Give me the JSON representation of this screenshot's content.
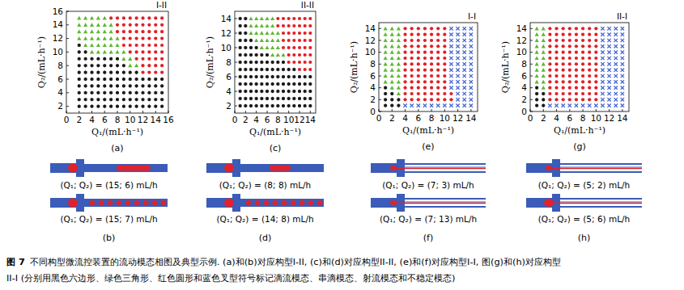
{
  "chart_data": [
    {
      "type": "scatter",
      "title": "I-II",
      "panel": "(a)",
      "x_label": "Q₁/(mL·h⁻¹)",
      "y_label": "Q₂/(mL·h⁻¹)",
      "xlim": [
        0,
        16
      ],
      "ylim": [
        1,
        16
      ],
      "xticks": [
        0,
        2,
        4,
        6,
        8,
        10,
        12,
        14,
        16
      ],
      "yticks": [
        2,
        4,
        6,
        8,
        10,
        12,
        14,
        16
      ],
      "series": [
        {
          "color": "#1a1a1a",
          "marker": "hexagon"
        },
        {
          "color": "#5cb82e",
          "marker": "triangle"
        },
        {
          "color": "#e21f26",
          "marker": "circle"
        },
        {
          "color": "#3d5fcf",
          "marker": "cross"
        }
      ],
      "x": [
        2,
        3,
        4,
        5,
        6,
        7,
        8,
        9,
        10,
        11,
        12,
        13,
        14,
        15
      ],
      "y": [
        2,
        3,
        4,
        5,
        6,
        7,
        8,
        9,
        10,
        11,
        12,
        13,
        14,
        15
      ],
      "cells": [
        [
          0,
          0,
          0,
          0,
          0,
          0,
          0,
          0,
          0,
          0,
          0,
          0,
          0,
          0
        ],
        [
          0,
          0,
          0,
          0,
          0,
          0,
          0,
          0,
          0,
          0,
          0,
          0,
          0,
          0
        ],
        [
          0,
          0,
          0,
          0,
          0,
          0,
          0,
          0,
          0,
          0,
          0,
          0,
          0,
          0
        ],
        [
          0,
          0,
          0,
          0,
          0,
          0,
          0,
          0,
          0,
          0,
          0,
          0,
          0,
          0
        ],
        [
          0,
          0,
          0,
          0,
          0,
          0,
          0,
          0,
          0,
          0,
          0,
          0,
          0,
          0
        ],
        [
          0,
          0,
          0,
          0,
          0,
          0,
          0,
          0,
          0,
          0,
          2,
          2,
          2,
          2
        ],
        [
          0,
          0,
          0,
          0,
          0,
          0,
          0,
          0,
          1,
          1,
          2,
          2,
          2,
          2
        ],
        [
          0,
          0,
          0,
          0,
          0,
          0,
          0,
          1,
          1,
          2,
          2,
          2,
          2,
          2
        ],
        [
          0,
          0,
          1,
          1,
          1,
          1,
          1,
          1,
          2,
          2,
          2,
          2,
          2,
          2
        ],
        [
          0,
          1,
          1,
          1,
          1,
          1,
          1,
          2,
          2,
          2,
          2,
          2,
          2,
          2
        ],
        [
          1,
          1,
          1,
          1,
          1,
          1,
          1,
          2,
          2,
          2,
          2,
          2,
          2,
          2
        ],
        [
          1,
          1,
          1,
          1,
          1,
          1,
          2,
          2,
          2,
          2,
          2,
          2,
          2,
          2
        ],
        [
          1,
          1,
          1,
          1,
          1,
          1,
          2,
          2,
          2,
          2,
          2,
          2,
          2,
          2
        ],
        [
          1,
          1,
          1,
          1,
          1,
          2,
          2,
          2,
          2,
          2,
          2,
          2,
          2,
          2
        ]
      ]
    },
    {
      "type": "scatter",
      "title": "II-II",
      "panel": "(c)",
      "x_label": "Q₁/(mL·h⁻¹)",
      "y_label": "Q₂/(mL·h⁻¹)",
      "xlim": [
        0,
        15
      ],
      "ylim": [
        1,
        15
      ],
      "xticks": [
        0,
        2,
        4,
        6,
        8,
        10,
        12,
        14
      ],
      "yticks": [
        2,
        4,
        6,
        8,
        10,
        12,
        14
      ],
      "series": [
        {
          "color": "#1a1a1a",
          "marker": "hexagon"
        },
        {
          "color": "#5cb82e",
          "marker": "triangle"
        },
        {
          "color": "#e21f26",
          "marker": "circle"
        },
        {
          "color": "#3d5fcf",
          "marker": "cross"
        }
      ],
      "x": [
        1,
        2,
        3,
        4,
        5,
        6,
        7,
        8,
        9,
        10,
        11,
        12,
        13,
        14
      ],
      "y": [
        2,
        3,
        4,
        5,
        6,
        7,
        8,
        9,
        10,
        11,
        12,
        13,
        14
      ],
      "cells": [
        [
          0,
          0,
          0,
          0,
          0,
          0,
          0,
          0,
          0,
          0,
          0,
          0,
          0,
          0
        ],
        [
          0,
          0,
          0,
          0,
          0,
          0,
          0,
          0,
          0,
          0,
          0,
          0,
          0,
          0
        ],
        [
          0,
          0,
          0,
          0,
          0,
          0,
          0,
          0,
          0,
          0,
          0,
          0,
          0,
          0
        ],
        [
          0,
          0,
          0,
          0,
          0,
          0,
          0,
          0,
          0,
          0,
          0,
          0,
          0,
          0
        ],
        [
          0,
          0,
          0,
          0,
          0,
          0,
          0,
          0,
          0,
          0,
          0,
          0,
          0,
          0
        ],
        [
          0,
          0,
          0,
          0,
          0,
          0,
          0,
          0,
          0,
          0,
          0,
          2,
          2,
          2
        ],
        [
          0,
          0,
          0,
          0,
          0,
          0,
          0,
          0,
          0,
          2,
          2,
          2,
          2,
          2
        ],
        [
          0,
          0,
          0,
          0,
          0,
          0,
          1,
          1,
          1,
          2,
          2,
          2,
          2,
          2
        ],
        [
          0,
          0,
          0,
          0,
          1,
          1,
          1,
          1,
          2,
          2,
          2,
          2,
          2,
          2
        ],
        [
          0,
          0,
          0,
          1,
          1,
          1,
          1,
          1,
          2,
          2,
          2,
          2,
          2,
          2
        ],
        [
          0,
          0,
          1,
          1,
          1,
          1,
          1,
          1,
          2,
          2,
          2,
          2,
          2,
          2
        ],
        [
          0,
          0,
          1,
          1,
          1,
          1,
          1,
          2,
          2,
          2,
          2,
          2,
          2,
          2
        ],
        [
          0,
          0,
          1,
          1,
          1,
          1,
          1,
          2,
          2,
          2,
          2,
          2,
          2,
          2
        ]
      ]
    },
    {
      "type": "scatter",
      "title": "I-I",
      "panel": "(e)",
      "x_label": "Q₁/(mL·h⁻¹)",
      "y_label": "Q₂/(mL·h⁻¹)",
      "xlim": [
        0,
        15
      ],
      "ylim": [
        0,
        15
      ],
      "xticks": [
        0,
        2,
        4,
        6,
        8,
        10,
        12,
        14
      ],
      "yticks": [
        0,
        2,
        4,
        6,
        8,
        10,
        12,
        14
      ],
      "series": [
        {
          "color": "#1a1a1a",
          "marker": "hexagon"
        },
        {
          "color": "#5cb82e",
          "marker": "triangle"
        },
        {
          "color": "#e21f26",
          "marker": "circle"
        },
        {
          "color": "#3d5fcf",
          "marker": "cross"
        }
      ],
      "x": [
        1,
        2,
        3,
        4,
        5,
        6,
        7,
        8,
        9,
        10,
        11,
        12,
        13,
        14
      ],
      "y": [
        1,
        2,
        3,
        4,
        5,
        6,
        7,
        8,
        9,
        10,
        11,
        12,
        13,
        14
      ],
      "cells": [
        [
          0,
          0,
          0,
          3,
          3,
          3,
          3,
          3,
          3,
          3,
          3,
          3,
          3,
          3
        ],
        [
          0,
          0,
          0,
          2,
          2,
          2,
          2,
          2,
          2,
          2,
          2,
          3,
          3,
          3
        ],
        [
          0,
          0,
          1,
          2,
          2,
          2,
          2,
          2,
          2,
          2,
          2,
          3,
          3,
          3
        ],
        [
          0,
          1,
          1,
          2,
          2,
          2,
          2,
          2,
          2,
          2,
          3,
          3,
          3,
          3
        ],
        [
          1,
          1,
          1,
          2,
          2,
          2,
          2,
          2,
          2,
          2,
          3,
          3,
          3,
          3
        ],
        [
          1,
          1,
          1,
          2,
          2,
          2,
          2,
          2,
          2,
          2,
          3,
          3,
          3,
          3
        ],
        [
          1,
          1,
          1,
          2,
          2,
          2,
          2,
          2,
          2,
          2,
          3,
          3,
          3,
          3
        ],
        [
          1,
          1,
          1,
          2,
          2,
          2,
          2,
          2,
          2,
          2,
          3,
          3,
          3,
          3
        ],
        [
          1,
          1,
          1,
          2,
          2,
          2,
          2,
          2,
          2,
          2,
          3,
          3,
          3,
          3
        ],
        [
          1,
          1,
          1,
          2,
          2,
          2,
          2,
          2,
          2,
          2,
          3,
          3,
          3,
          3
        ],
        [
          1,
          1,
          1,
          2,
          2,
          2,
          2,
          2,
          2,
          2,
          3,
          3,
          3,
          3
        ],
        [
          1,
          1,
          1,
          2,
          2,
          2,
          2,
          2,
          2,
          2,
          3,
          3,
          3,
          3
        ],
        [
          1,
          1,
          1,
          2,
          2,
          2,
          2,
          2,
          2,
          2,
          3,
          3,
          3,
          3
        ],
        [
          1,
          1,
          1,
          2,
          2,
          2,
          2,
          2,
          2,
          2,
          3,
          3,
          3,
          3
        ]
      ]
    },
    {
      "type": "scatter",
      "title": "II-I",
      "panel": "(g)",
      "x_label": "Q₁/(mL·h⁻¹)",
      "y_label": "Q₂/(mL·h⁻¹)",
      "xlim": [
        0,
        15
      ],
      "ylim": [
        0,
        15
      ],
      "xticks": [
        0,
        2,
        4,
        6,
        8,
        10,
        12,
        14
      ],
      "yticks": [
        0,
        2,
        4,
        6,
        8,
        10,
        12,
        14
      ],
      "series": [
        {
          "color": "#1a1a1a",
          "marker": "hexagon"
        },
        {
          "color": "#5cb82e",
          "marker": "triangle"
        },
        {
          "color": "#e21f26",
          "marker": "circle"
        },
        {
          "color": "#3d5fcf",
          "marker": "cross"
        }
      ],
      "x": [
        1,
        2,
        3,
        4,
        5,
        6,
        7,
        8,
        9,
        10,
        11,
        12,
        13,
        14
      ],
      "y": [
        1,
        2,
        3,
        4,
        5,
        6,
        7,
        8,
        9,
        10,
        11,
        12,
        13,
        14
      ],
      "cells": [
        [
          0,
          0,
          3,
          3,
          3,
          3,
          3,
          3,
          3,
          3,
          3,
          3,
          3,
          3
        ],
        [
          0,
          0,
          2,
          2,
          2,
          2,
          2,
          2,
          2,
          2,
          3,
          3,
          3,
          3
        ],
        [
          0,
          0,
          2,
          2,
          2,
          2,
          2,
          2,
          2,
          2,
          3,
          3,
          3,
          3
        ],
        [
          0,
          1,
          2,
          2,
          2,
          2,
          2,
          2,
          2,
          2,
          3,
          3,
          3,
          3
        ],
        [
          1,
          1,
          2,
          2,
          2,
          2,
          2,
          2,
          2,
          2,
          3,
          3,
          3,
          3
        ],
        [
          1,
          1,
          2,
          2,
          2,
          2,
          2,
          2,
          2,
          2,
          3,
          3,
          3,
          3
        ],
        [
          1,
          1,
          2,
          2,
          2,
          2,
          2,
          2,
          2,
          2,
          3,
          3,
          3,
          3
        ],
        [
          1,
          1,
          2,
          2,
          2,
          2,
          2,
          2,
          2,
          2,
          3,
          3,
          3,
          3
        ],
        [
          1,
          1,
          2,
          2,
          2,
          2,
          2,
          2,
          2,
          2,
          3,
          3,
          3,
          3
        ],
        [
          1,
          1,
          2,
          2,
          2,
          2,
          2,
          2,
          2,
          2,
          3,
          3,
          3,
          3
        ],
        [
          1,
          1,
          2,
          2,
          2,
          2,
          2,
          2,
          2,
          2,
          3,
          3,
          3,
          3
        ],
        [
          1,
          1,
          2,
          2,
          2,
          2,
          2,
          2,
          2,
          2,
          3,
          3,
          3,
          3
        ],
        [
          1,
          1,
          2,
          2,
          2,
          2,
          2,
          2,
          2,
          2,
          3,
          3,
          3,
          3
        ],
        [
          1,
          1,
          2,
          2,
          2,
          2,
          2,
          2,
          2,
          2,
          3,
          3,
          3,
          3
        ]
      ]
    }
  ],
  "examples": [
    {
      "panel": "(b)",
      "labels": [
        "(Q₁; Q₂) = (15; 6) mL/h",
        "(Q₁; Q₂) = (15; 7) mL/h"
      ]
    },
    {
      "panel": "(d)",
      "labels": [
        "(Q₁; Q₂) = (8; 8) mL/h",
        "(Q₁; Q₂) = (14; 8) mL/h"
      ]
    },
    {
      "panel": "(f)",
      "labels": [
        "(Q₁; Q₂) = (7; 3) mL/h",
        "(Q₁; Q₂) = (7; 13) mL/h"
      ]
    },
    {
      "panel": "(h)",
      "labels": [
        "(Q₁; Q₂) = (5; 2) mL/h",
        "(Q₁; Q₂) = (5; 6) mL/h"
      ]
    }
  ],
  "caption": {
    "label": "图 7",
    "lines": [
      "不同构型微流控装置的流动模态相图及典型示例. (a)和(b)对应构型I-II, (c)和(d)对应构型II-II, (e)和(f)对应构型I-I, 图(g)和(h)对应构型",
      "II-I (分别用黑色六边形、绿色三角形、红色圆形和蓝色叉型符号标记滴流模态、串滴模态、射流模态和不稳定模态)"
    ]
  }
}
